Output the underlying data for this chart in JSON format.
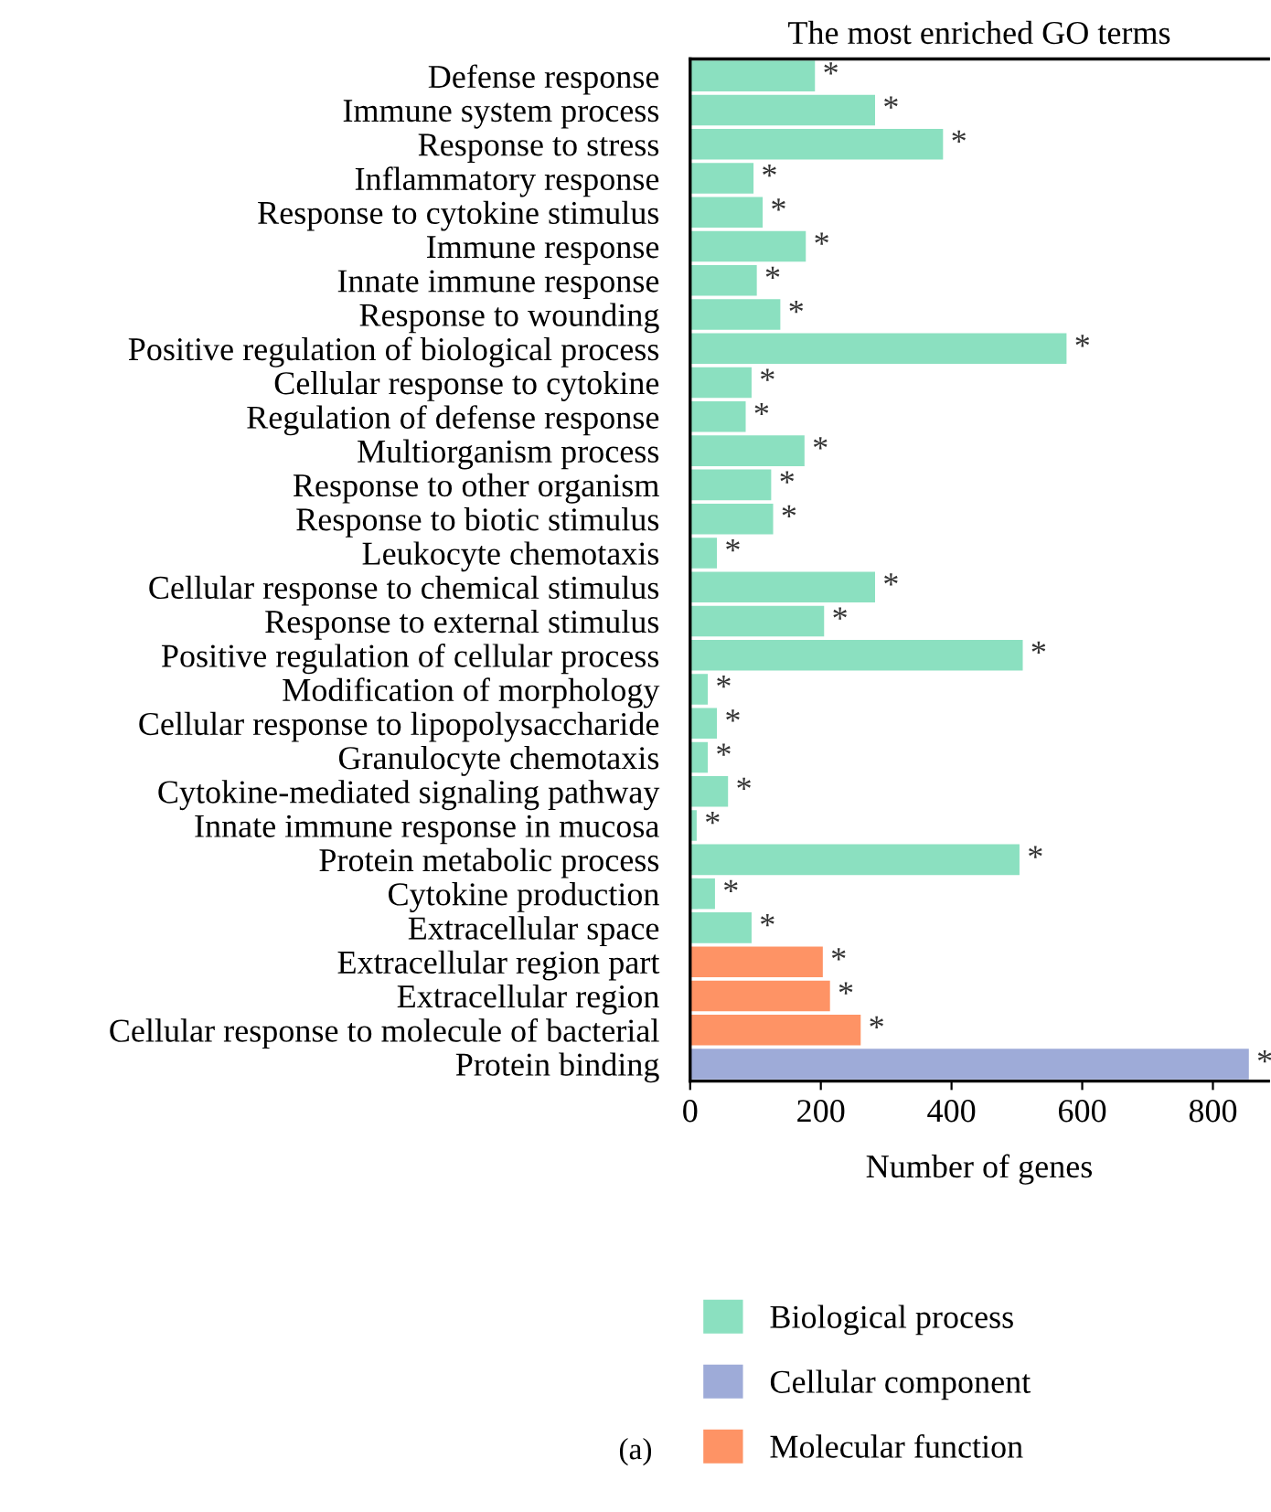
{
  "chart_data": {
    "type": "bar",
    "orientation": "horizontal",
    "title": "The most enriched GO terms",
    "xlabel": "Number of genes",
    "categories": [
      "Defense response",
      "Immune system process",
      "Response to stress",
      "Inflammatory response",
      "Response to cytokine stimulus",
      "Immune response",
      "Innate immune response",
      "Response to wounding",
      "Positive regulation of biological process",
      "Cellular response to cytokine",
      "Regulation of defense response",
      "Multiorganism process",
      "Response to other organism",
      "Response to biotic stimulus",
      "Leukocyte chemotaxis",
      "Cellular response to chemical stimulus",
      "Response to external stimulus",
      "Positive regulation of cellular process",
      "Modification of morphology",
      "Cellular response to lipopolysaccharide",
      "Granulocyte chemotaxis",
      "Cytokine-mediated signaling pathway",
      "Innate immune response in mucosa",
      "Protein metabolic process",
      "Cytokine production",
      "Extracellular space",
      "Extracellular region part",
      "Extracellular region",
      "Cellular response to molecule of bacterial",
      "Protein binding"
    ],
    "series": [
      {
        "name": "Biological process",
        "color": "#8be0c0",
        "values": [
          191,
          283,
          387,
          97,
          111,
          177,
          102,
          138,
          576,
          94,
          85,
          175,
          124,
          127,
          41,
          283,
          205,
          509,
          27,
          41,
          27,
          58,
          10,
          504,
          38,
          94,
          null,
          null,
          null,
          null
        ],
        "value_labels": [
          "*",
          "*",
          "*",
          "*",
          "*",
          "*",
          "*",
          "*",
          "*",
          "*",
          "*",
          "*",
          "*",
          "*",
          "*",
          "*",
          "*",
          "*",
          "*",
          "*",
          "*",
          "*",
          "*",
          "*",
          "*",
          "*",
          null,
          null,
          null,
          null
        ]
      },
      {
        "name": "Cellular component",
        "color": "#9eabd8",
        "values": [
          null,
          null,
          null,
          null,
          null,
          null,
          null,
          null,
          null,
          null,
          null,
          null,
          null,
          null,
          null,
          null,
          null,
          null,
          null,
          null,
          null,
          null,
          null,
          null,
          null,
          null,
          null,
          null,
          null,
          855
        ],
        "value_labels": [
          null,
          null,
          null,
          null,
          null,
          null,
          null,
          null,
          null,
          null,
          null,
          null,
          null,
          null,
          null,
          null,
          null,
          null,
          null,
          null,
          null,
          null,
          null,
          null,
          null,
          null,
          null,
          null,
          null,
          "*"
        ]
      },
      {
        "name": "Molecular function",
        "color": "#fe9365",
        "values": [
          null,
          null,
          null,
          null,
          null,
          null,
          null,
          null,
          null,
          null,
          null,
          null,
          null,
          null,
          null,
          null,
          null,
          null,
          null,
          null,
          null,
          null,
          null,
          null,
          null,
          null,
          203,
          214,
          261,
          null
        ],
        "value_labels": [
          null,
          null,
          null,
          null,
          null,
          null,
          null,
          null,
          null,
          null,
          null,
          null,
          null,
          null,
          null,
          null,
          null,
          null,
          null,
          null,
          null,
          null,
          null,
          null,
          null,
          null,
          "*",
          "*",
          "*",
          null
        ]
      }
    ],
    "xlim": [
      0,
      885
    ],
    "xticks": [
      0,
      200,
      400,
      600,
      800
    ],
    "grid": false,
    "legend": "bottom",
    "annotations": [
      "(a)"
    ]
  }
}
